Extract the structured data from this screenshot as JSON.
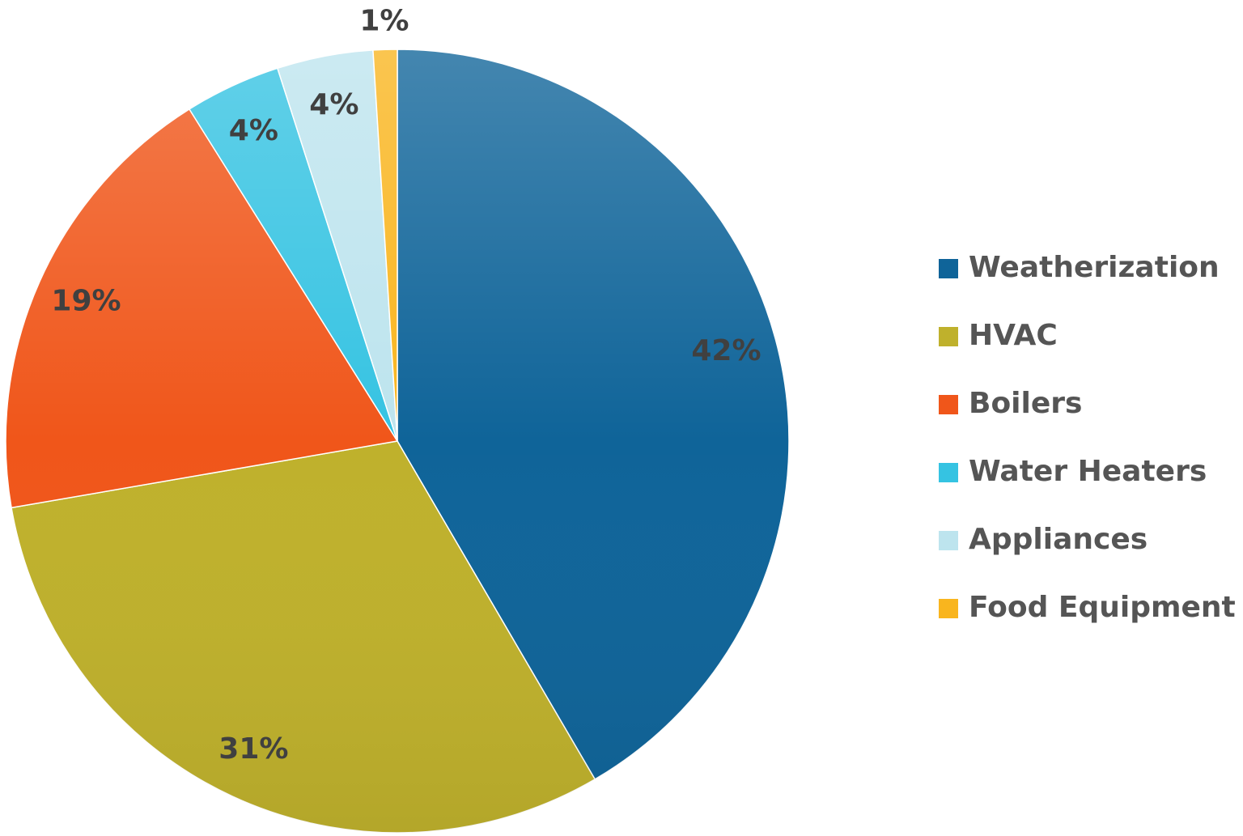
{
  "chart_data": {
    "type": "pie",
    "categories": [
      "Weatherization",
      "HVAC",
      "Boilers",
      "Water Heaters",
      "Appliances",
      "Food Equipment"
    ],
    "values": [
      42,
      31,
      19,
      4,
      4,
      1
    ],
    "value_labels": [
      "42%",
      "31%",
      "19%",
      "4%",
      "4%",
      "1%"
    ],
    "colors": [
      "#0f6499",
      "#bfb12c",
      "#f0561a",
      "#35c3e2",
      "#bde4ee",
      "#f9b51e"
    ],
    "legend": "right"
  }
}
